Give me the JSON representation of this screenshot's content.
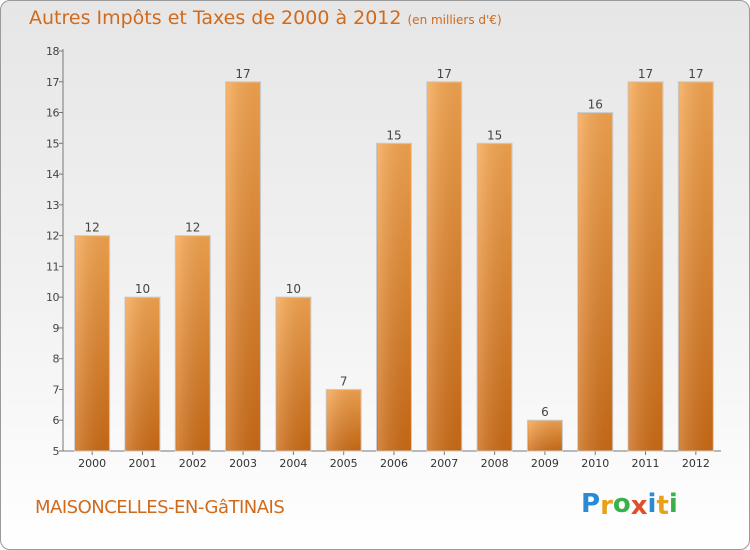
{
  "header": {
    "title": "Autres Impôts et Taxes de 2000 à 2012",
    "unit": "(en milliers d'€)"
  },
  "footer": {
    "city": "MAISONCELLES-EN-GâTINAIS",
    "logo_letters": [
      "P",
      "r",
      "o",
      "x",
      "i",
      "t",
      "i"
    ],
    "logo_colors": [
      "#2a8ad6",
      "#e8a21a",
      "#3ab04a",
      "#e04f2a",
      "#2a8ad6",
      "#e8a21a",
      "#3ab04a"
    ]
  },
  "colors": {
    "bar_top": "#f6a650",
    "bar_bottom": "#cd6c16",
    "accent": "#d06a1c"
  },
  "chart_data": {
    "type": "bar",
    "categories": [
      "2000",
      "2001",
      "2002",
      "2003",
      "2004",
      "2005",
      "2006",
      "2007",
      "2008",
      "2009",
      "2010",
      "2011",
      "2012"
    ],
    "values": [
      12,
      10,
      12,
      17,
      10,
      7,
      15,
      17,
      15,
      6,
      16,
      17,
      17
    ],
    "data_labels": [
      "12",
      "10",
      "12",
      "17",
      "10",
      "7",
      "15",
      "17",
      "15",
      "6",
      "16",
      "17",
      "17"
    ],
    "yticks": [
      "5",
      "6",
      "7",
      "8",
      "9",
      "10",
      "11",
      "12",
      "13",
      "14",
      "15",
      "16",
      "17",
      "18"
    ],
    "ylim": [
      5,
      18
    ],
    "grid": false,
    "legend": "none"
  }
}
